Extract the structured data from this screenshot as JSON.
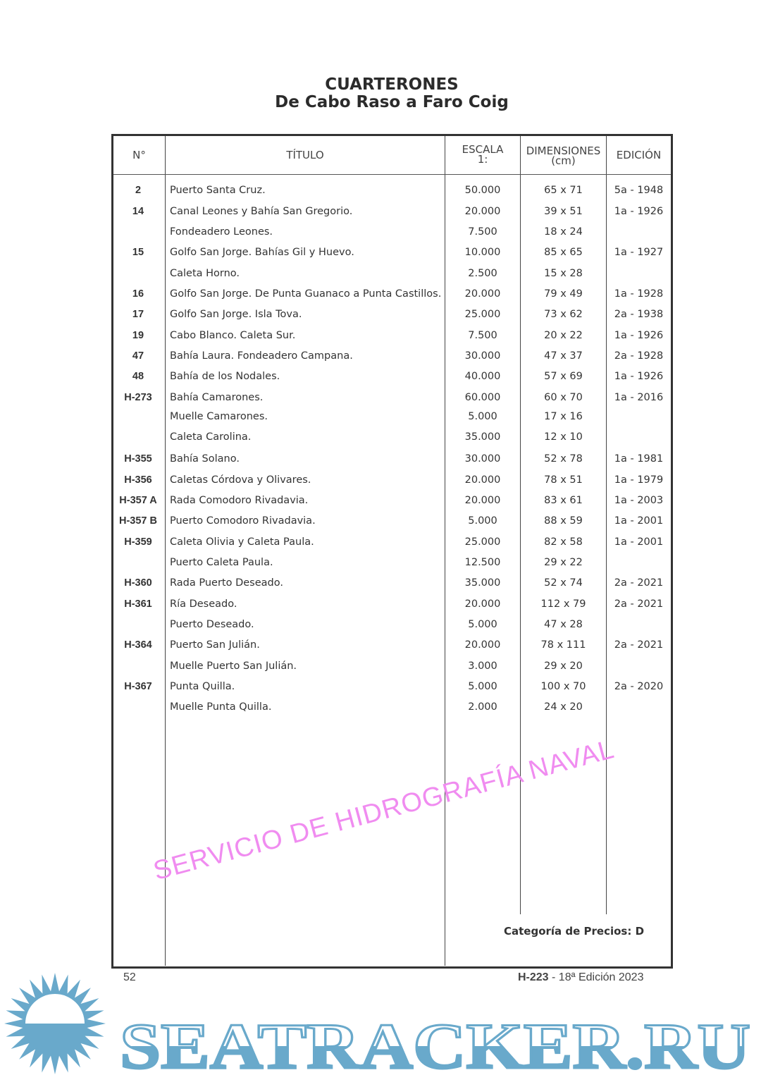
{
  "heading": {
    "title": "CUARTERONES",
    "subtitle": "De Cabo Raso a Faro Coig"
  },
  "columns": {
    "num": "N°",
    "titulo": "TÍTULO",
    "escala_1": "ESCALA",
    "escala_2": "1:",
    "dim_1": "DIMENSIONES",
    "dim_2": "(cm)",
    "edicion": "EDICIÓN"
  },
  "rows": [
    {
      "num": "2",
      "titulo": "Puerto Santa Cruz.",
      "escala": "50.000",
      "dim": "65 x 71",
      "edicion": "5a - 1948"
    },
    {
      "num": "14",
      "titulo": "Canal Leones y Bahía San Gregorio.",
      "escala": "20.000",
      "dim": "39 x 51",
      "edicion": "1a - 1926"
    },
    {
      "num": "",
      "titulo": "Fondeadero Leones.",
      "escala": "7.500",
      "dim": "18 x 24",
      "edicion": ""
    },
    {
      "num": "15",
      "titulo": "Golfo San Jorge. Bahías Gil y Huevo.",
      "escala": "10.000",
      "dim": "85 x 65",
      "edicion": "1a - 1927"
    },
    {
      "num": "",
      "titulo": "Caleta Horno.",
      "escala": "2.500",
      "dim": "15 x 28",
      "edicion": ""
    },
    {
      "num": "16",
      "titulo": "Golfo San Jorge. De Punta Guanaco a Punta Castillos.",
      "escala": "20.000",
      "dim": "79 x 49",
      "edicion": "1a - 1928"
    },
    {
      "num": "17",
      "titulo": "Golfo San Jorge. Isla Tova.",
      "escala": "25.000",
      "dim": "73 x 62",
      "edicion": "2a - 1938"
    },
    {
      "num": "19",
      "titulo": "Cabo Blanco. Caleta Sur.",
      "escala": "7.500",
      "dim": "20 x 22",
      "edicion": "1a - 1926"
    },
    {
      "num": "47",
      "titulo": "Bahía Laura. Fondeadero Campana.",
      "escala": "30.000",
      "dim": "47 x 37",
      "edicion": "2a - 1928"
    },
    {
      "num": "48",
      "titulo": "Bahía de los Nodales.",
      "escala": "40.000",
      "dim": "57 x 69",
      "edicion": "1a - 1926"
    },
    {
      "num": "H-273",
      "titulo": "Bahía Camarones.",
      "escala": "60.000",
      "dim": "60 x 70",
      "edicion": "1a - 2016"
    },
    {
      "num": "",
      "titulo": "Muelle Camarones.",
      "escala": "5.000",
      "dim": "17 x 16",
      "edicion": ""
    },
    {
      "num": "",
      "titulo": "Caleta Carolina.",
      "escala": "35.000",
      "dim": "12 x 10",
      "edicion": ""
    },
    {
      "num": "H-355",
      "titulo": "Bahía Solano.",
      "escala": "30.000",
      "dim": "52 x 78",
      "edicion": "1a - 1981"
    },
    {
      "num": "H-356",
      "titulo": "Caletas Córdova y Olivares.",
      "escala": "20.000",
      "dim": "78 x 51",
      "edicion": "1a - 1979"
    },
    {
      "num": "H-357 A",
      "titulo": "Rada Comodoro Rivadavia.",
      "escala": "20.000",
      "dim": "83 x 61",
      "edicion": "1a - 2003"
    },
    {
      "num": "H-357 B",
      "titulo": "Puerto Comodoro Rivadavia.",
      "escala": "5.000",
      "dim": "88 x 59",
      "edicion": "1a - 2001"
    },
    {
      "num": "H-359",
      "titulo": "Caleta Olivia y Caleta Paula.",
      "escala": "25.000",
      "dim": "82 x 58",
      "edicion": "1a - 2001"
    },
    {
      "num": "",
      "titulo": "Puerto Caleta Paula.",
      "escala": "12.500",
      "dim": "29 x 22",
      "edicion": ""
    },
    {
      "num": "H-360",
      "titulo": "Rada Puerto Deseado.",
      "escala": "35.000",
      "dim": "52 x 74",
      "edicion": "2a - 2021"
    },
    {
      "num": "H-361",
      "titulo": "Ría Deseado.",
      "escala": "20.000",
      "dim": "112 x 79",
      "edicion": "2a - 2021"
    },
    {
      "num": "",
      "titulo": "Puerto Deseado.",
      "escala": "5.000",
      "dim": "47 x 28",
      "edicion": ""
    },
    {
      "num": "H-364",
      "titulo": "Puerto San Julián.",
      "escala": "20.000",
      "dim": "78 x 111",
      "edicion": "2a - 2021"
    },
    {
      "num": "",
      "titulo": "Muelle Puerto San Julián.",
      "escala": "3.000",
      "dim": "29 x 20",
      "edicion": ""
    },
    {
      "num": "H-367",
      "titulo": "Punta Quilla.",
      "escala": "5.000",
      "dim": "100 x 70",
      "edicion": "2a - 2020"
    },
    {
      "num": "",
      "titulo": "Muelle Punta Quilla.",
      "escala": "2.000",
      "dim": "24 x 20",
      "edicion": ""
    }
  ],
  "price_category": "Categoría de Precios: D",
  "watermark": "SERVICIO DE HIDROGRAFÍA NAVAL",
  "footer": {
    "page": "52",
    "code": "H-223",
    "edition": " - 18ª Edición 2023"
  },
  "logo": {
    "text": "SEATRACKER.RU",
    "color": "#69a9cb"
  }
}
